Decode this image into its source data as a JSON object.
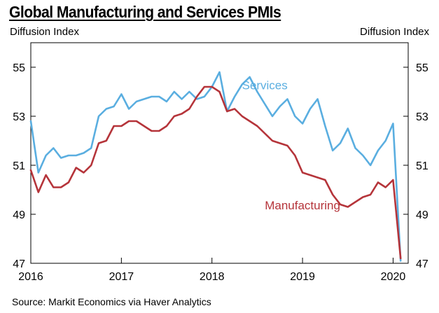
{
  "chart_data": {
    "type": "line",
    "title": "Global Manufacturing and Services PMIs",
    "ylabel_left": "Diffusion Index",
    "ylabel_right": "Diffusion Index",
    "source": "Source: Markit Economics via Haver Analytics",
    "x_ticks": [
      "2016",
      "2017",
      "2018",
      "2019",
      "2020"
    ],
    "xlim": [
      "2016-01",
      "2020-03"
    ],
    "ylim": [
      47,
      56
    ],
    "y_ticks": [
      47,
      49,
      51,
      53,
      55
    ],
    "grid": false,
    "series": [
      {
        "name": "Services",
        "color": "#5aaee0",
        "x": [
          "2016-01",
          "2016-02",
          "2016-03",
          "2016-04",
          "2016-05",
          "2016-06",
          "2016-07",
          "2016-08",
          "2016-09",
          "2016-10",
          "2016-11",
          "2016-12",
          "2017-01",
          "2017-02",
          "2017-03",
          "2017-04",
          "2017-05",
          "2017-06",
          "2017-07",
          "2017-08",
          "2017-09",
          "2017-10",
          "2017-11",
          "2017-12",
          "2018-01",
          "2018-02",
          "2018-03",
          "2018-04",
          "2018-05",
          "2018-06",
          "2018-07",
          "2018-08",
          "2018-09",
          "2018-10",
          "2018-11",
          "2018-12",
          "2019-01",
          "2019-02",
          "2019-03",
          "2019-04",
          "2019-05",
          "2019-06",
          "2019-07",
          "2019-08",
          "2019-09",
          "2019-10",
          "2019-11",
          "2019-12",
          "2020-01",
          "2020-02"
        ],
        "values": [
          52.8,
          50.7,
          51.4,
          51.7,
          51.3,
          51.4,
          51.4,
          51.5,
          51.7,
          53.0,
          53.3,
          53.4,
          53.9,
          53.3,
          53.6,
          53.7,
          53.8,
          53.8,
          53.6,
          54.0,
          53.7,
          54.0,
          53.7,
          53.8,
          54.2,
          54.8,
          53.2,
          53.8,
          54.3,
          54.6,
          54.0,
          53.5,
          53.0,
          53.4,
          53.7,
          53.0,
          52.7,
          53.3,
          53.7,
          52.6,
          51.6,
          51.9,
          52.5,
          51.7,
          51.4,
          51.0,
          51.6,
          52.0,
          52.7,
          47.1
        ]
      },
      {
        "name": "Manufacturing",
        "color": "#b5343a",
        "x": [
          "2016-01",
          "2016-02",
          "2016-03",
          "2016-04",
          "2016-05",
          "2016-06",
          "2016-07",
          "2016-08",
          "2016-09",
          "2016-10",
          "2016-11",
          "2016-12",
          "2017-01",
          "2017-02",
          "2017-03",
          "2017-04",
          "2017-05",
          "2017-06",
          "2017-07",
          "2017-08",
          "2017-09",
          "2017-10",
          "2017-11",
          "2017-12",
          "2018-01",
          "2018-02",
          "2018-03",
          "2018-04",
          "2018-05",
          "2018-06",
          "2018-07",
          "2018-08",
          "2018-09",
          "2018-10",
          "2018-11",
          "2018-12",
          "2019-01",
          "2019-02",
          "2019-03",
          "2019-04",
          "2019-05",
          "2019-06",
          "2019-07",
          "2019-08",
          "2019-09",
          "2019-10",
          "2019-11",
          "2019-12",
          "2020-01",
          "2020-02"
        ],
        "values": [
          50.8,
          49.9,
          50.6,
          50.1,
          50.1,
          50.3,
          50.9,
          50.7,
          51.0,
          51.9,
          52.0,
          52.6,
          52.6,
          52.8,
          52.8,
          52.6,
          52.4,
          52.4,
          52.6,
          53.0,
          53.1,
          53.3,
          53.8,
          54.2,
          54.2,
          54.0,
          53.2,
          53.3,
          53.0,
          52.8,
          52.6,
          52.3,
          52.0,
          51.9,
          51.8,
          51.4,
          50.7,
          50.6,
          50.5,
          50.4,
          49.8,
          49.4,
          49.3,
          49.5,
          49.7,
          49.8,
          50.3,
          50.1,
          50.4,
          47.2
        ]
      }
    ],
    "annotations": [
      {
        "text": "Services",
        "series": "Services",
        "at": [
          "2018-08",
          54.1
        ]
      },
      {
        "text": "Manufacturing",
        "series": "Manufacturing",
        "at": [
          "2019-01",
          49.2
        ]
      }
    ]
  }
}
